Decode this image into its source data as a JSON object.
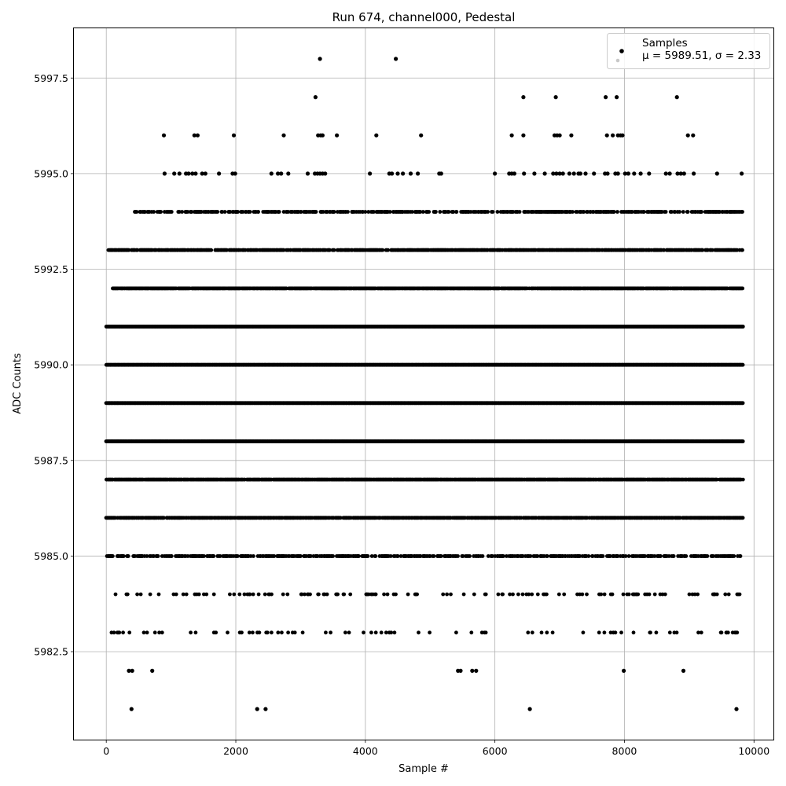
{
  "chart_data": {
    "type": "scatter",
    "title": "Run 674, channel000, Pedestal",
    "xlabel": "Sample #",
    "ylabel": "ADC Counts",
    "xlim": [
      -500,
      10300
    ],
    "ylim": [
      5980.2,
      5998.8
    ],
    "xticks": [
      0,
      2000,
      4000,
      6000,
      8000,
      10000
    ],
    "xtick_labels": [
      "0",
      "2000",
      "4000",
      "6000",
      "8000",
      "10000"
    ],
    "yticks": [
      5982.5,
      5985.0,
      5987.5,
      5990.0,
      5992.5,
      5995.0,
      5997.5
    ],
    "ytick_labels": [
      "5982.5",
      "5985.0",
      "5987.5",
      "5990.0",
      "5992.5",
      "5995.0",
      "5997.5"
    ],
    "grid": true,
    "legend": {
      "placement": "top-right",
      "entries": [
        "Samples",
        "μ = 5989.51, σ = 2.33"
      ]
    },
    "series": [
      {
        "name": "Samples",
        "color": "#000000",
        "sample_count": 9830,
        "points": [
          [
            3300,
            5998
          ],
          [
            4470,
            5998
          ],
          [
            3230,
            5997
          ],
          [
            6440,
            5997
          ],
          [
            6940,
            5997
          ],
          [
            7710,
            5997
          ],
          [
            7880,
            5997
          ],
          [
            8810,
            5997
          ],
          [
            890,
            5996
          ],
          [
            1360,
            5996
          ],
          [
            1410,
            5996
          ],
          [
            1970,
            5996
          ],
          [
            2740,
            5996
          ],
          [
            3270,
            5996
          ],
          [
            3310,
            5996
          ],
          [
            3340,
            5996
          ],
          [
            3560,
            5996
          ],
          [
            4170,
            5996
          ],
          [
            4860,
            5996
          ],
          [
            6260,
            5996
          ],
          [
            6440,
            5996
          ],
          [
            6920,
            5996
          ],
          [
            6960,
            5996
          ],
          [
            7000,
            5996
          ],
          [
            7180,
            5996
          ],
          [
            7730,
            5996
          ],
          [
            7820,
            5996
          ],
          [
            7900,
            5996
          ],
          [
            7940,
            5996
          ],
          [
            7970,
            5996
          ],
          [
            8980,
            5996
          ],
          [
            9060,
            5996
          ],
          [
            900,
            5995
          ],
          [
            1050,
            5995
          ],
          [
            1130,
            5995
          ],
          [
            1230,
            5995
          ],
          [
            1270,
            5995
          ],
          [
            1330,
            5995
          ],
          [
            1380,
            5995
          ],
          [
            1480,
            5995
          ],
          [
            1530,
            5995
          ],
          [
            1740,
            5995
          ],
          [
            1950,
            5995
          ],
          [
            1990,
            5995
          ],
          [
            2550,
            5995
          ],
          [
            2650,
            5995
          ],
          [
            2700,
            5995
          ],
          [
            2810,
            5995
          ],
          [
            3110,
            5995
          ],
          [
            3220,
            5995
          ],
          [
            3260,
            5995
          ],
          [
            3300,
            5995
          ],
          [
            3340,
            5995
          ],
          [
            3380,
            5995
          ],
          [
            4070,
            5995
          ],
          [
            4370,
            5995
          ],
          [
            4410,
            5995
          ],
          [
            4500,
            5995
          ],
          [
            4580,
            5995
          ],
          [
            4700,
            5995
          ],
          [
            4810,
            5995
          ],
          [
            5140,
            5995
          ],
          [
            5170,
            5995
          ],
          [
            6000,
            5995
          ],
          [
            6220,
            5995
          ],
          [
            6260,
            5995
          ],
          [
            6300,
            5995
          ],
          [
            6450,
            5995
          ],
          [
            6610,
            5995
          ],
          [
            6770,
            5995
          ],
          [
            6900,
            5995
          ],
          [
            6950,
            5995
          ],
          [
            7000,
            5995
          ],
          [
            7050,
            5995
          ],
          [
            7150,
            5995
          ],
          [
            7220,
            5995
          ],
          [
            7290,
            5995
          ],
          [
            7320,
            5995
          ],
          [
            7400,
            5995
          ],
          [
            7530,
            5995
          ],
          [
            7700,
            5995
          ],
          [
            7740,
            5995
          ],
          [
            7860,
            5995
          ],
          [
            7900,
            5995
          ],
          [
            8010,
            5995
          ],
          [
            8060,
            5995
          ],
          [
            8150,
            5995
          ],
          [
            8250,
            5995
          ],
          [
            8380,
            5995
          ],
          [
            8640,
            5995
          ],
          [
            8700,
            5995
          ],
          [
            8820,
            5995
          ],
          [
            8870,
            5995
          ],
          [
            8920,
            5995
          ],
          [
            9070,
            5995
          ],
          [
            9430,
            5995
          ],
          [
            9810,
            5995
          ],
          [
            350,
            5982
          ],
          [
            400,
            5982
          ],
          [
            710,
            5982
          ],
          [
            5430,
            5982
          ],
          [
            5470,
            5982
          ],
          [
            5650,
            5982
          ],
          [
            5710,
            5982
          ],
          [
            7990,
            5982
          ],
          [
            8910,
            5982
          ],
          [
            390,
            5981
          ],
          [
            2330,
            5981
          ],
          [
            2460,
            5981
          ],
          [
            6540,
            5981
          ],
          [
            9730,
            5981
          ]
        ],
        "bands": [
          {
            "y": 5994,
            "x_min": 440,
            "x_max": 9820,
            "density": 0.48
          },
          {
            "y": 5993,
            "x_min": 30,
            "x_max": 9820,
            "density": 0.75
          },
          {
            "y": 5992,
            "x_min": 100,
            "x_max": 9820,
            "density": 0.88
          },
          {
            "y": 5991,
            "x_min": 0,
            "x_max": 9830,
            "density": 1.0
          },
          {
            "y": 5990,
            "x_min": 0,
            "x_max": 9830,
            "density": 1.0
          },
          {
            "y": 5989,
            "x_min": 0,
            "x_max": 9830,
            "density": 1.0
          },
          {
            "y": 5988,
            "x_min": 0,
            "x_max": 9830,
            "density": 1.0
          },
          {
            "y": 5987,
            "x_min": 0,
            "x_max": 9830,
            "density": 0.92
          },
          {
            "y": 5986,
            "x_min": 0,
            "x_max": 9830,
            "density": 0.8
          },
          {
            "y": 5985,
            "x_min": 0,
            "x_max": 9800,
            "density": 0.5
          },
          {
            "y": 5984,
            "x_min": 40,
            "x_max": 9780,
            "density": 0.12
          },
          {
            "y": 5983,
            "x_min": 0,
            "x_max": 9830,
            "density": 0.08
          }
        ]
      }
    ]
  }
}
